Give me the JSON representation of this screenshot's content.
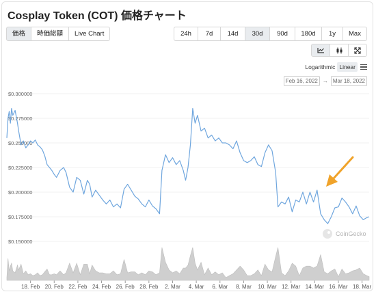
{
  "title": "Cosplay Token (COT) 価格チャート",
  "tabs": [
    {
      "label": "価格",
      "active": true
    },
    {
      "label": "時価総額",
      "active": false
    },
    {
      "label": "Live Chart",
      "active": false
    }
  ],
  "ranges": [
    {
      "label": "24h",
      "active": false
    },
    {
      "label": "7d",
      "active": false
    },
    {
      "label": "14d",
      "active": false
    },
    {
      "label": "30d",
      "active": true
    },
    {
      "label": "90d",
      "active": false
    },
    {
      "label": "180d",
      "active": false
    },
    {
      "label": "1y",
      "active": false
    },
    {
      "label": "Max",
      "active": false
    }
  ],
  "chart_types": [
    {
      "icon": "line-chart-icon",
      "active": true
    },
    {
      "icon": "candlestick-icon",
      "active": false
    },
    {
      "icon": "fullscreen-icon",
      "active": false
    }
  ],
  "scale": {
    "log_label": "Logarithmic",
    "linear_label": "Linear",
    "selected": "Linear"
  },
  "date_range": {
    "from": "Feb 16, 2022",
    "to": "Mar 18, 2022",
    "separator": "→"
  },
  "watermark": "CoinGecko",
  "colors": {
    "line": "#6fa6de",
    "volume": "#cfcfcf",
    "annotation": "#f0a32a",
    "grid": "#f0f0f0"
  },
  "chart_data": {
    "type": "line",
    "title": "",
    "xlabel": "",
    "ylabel": "",
    "ylim": [
      0.15,
      0.3
    ],
    "y_ticks": [
      0.15,
      0.175,
      0.2,
      0.225,
      0.25,
      0.275,
      0.3
    ],
    "y_tick_labels": [
      "$0.150000",
      "$0.175000",
      "$0.200000",
      "$0.225000",
      "$0.250000",
      "$0.275000",
      "$0.300000"
    ],
    "xlim_day": [
      16.0,
      46.6
    ],
    "x_ticks": [
      {
        "label": "18. Feb",
        "day": 18
      },
      {
        "label": "20. Feb",
        "day": 20
      },
      {
        "label": "22. Feb",
        "day": 22
      },
      {
        "label": "24. Feb",
        "day": 24
      },
      {
        "label": "26. Feb",
        "day": 26
      },
      {
        "label": "28. Feb",
        "day": 28
      },
      {
        "label": "2. Mar",
        "day": 30
      },
      {
        "label": "4. Mar",
        "day": 32
      },
      {
        "label": "6. Mar",
        "day": 34
      },
      {
        "label": "8. Mar",
        "day": 36
      },
      {
        "label": "10. Mar",
        "day": 38
      },
      {
        "label": "12. Mar",
        "day": 40
      },
      {
        "label": "14. Mar",
        "day": 42
      },
      {
        "label": "16. Mar",
        "day": 44
      },
      {
        "label": "18. Mar",
        "day": 46
      }
    ],
    "series": [
      {
        "name": "",
        "points": [
          [
            16.0,
            0.255
          ],
          [
            16.1,
            0.275
          ],
          [
            16.2,
            0.282
          ],
          [
            16.3,
            0.27
          ],
          [
            16.4,
            0.285
          ],
          [
            16.5,
            0.278
          ],
          [
            16.7,
            0.283
          ],
          [
            16.9,
            0.27
          ],
          [
            17.0,
            0.262
          ],
          [
            17.2,
            0.248
          ],
          [
            17.4,
            0.252
          ],
          [
            17.6,
            0.245
          ],
          [
            17.8,
            0.248
          ],
          [
            18.0,
            0.252
          ],
          [
            18.2,
            0.25
          ],
          [
            18.4,
            0.253
          ],
          [
            18.6,
            0.248
          ],
          [
            18.8,
            0.246
          ],
          [
            19.0,
            0.243
          ],
          [
            19.2,
            0.237
          ],
          [
            19.4,
            0.228
          ],
          [
            19.6,
            0.225
          ],
          [
            19.8,
            0.222
          ],
          [
            20.0,
            0.218
          ],
          [
            20.2,
            0.215
          ],
          [
            20.5,
            0.222
          ],
          [
            20.8,
            0.225
          ],
          [
            21.0,
            0.22
          ],
          [
            21.3,
            0.205
          ],
          [
            21.6,
            0.2
          ],
          [
            21.9,
            0.215
          ],
          [
            22.2,
            0.212
          ],
          [
            22.5,
            0.198
          ],
          [
            22.8,
            0.212
          ],
          [
            23.0,
            0.208
          ],
          [
            23.2,
            0.195
          ],
          [
            23.5,
            0.202
          ],
          [
            23.8,
            0.197
          ],
          [
            24.1,
            0.192
          ],
          [
            24.4,
            0.188
          ],
          [
            24.7,
            0.192
          ],
          [
            25.0,
            0.185
          ],
          [
            25.3,
            0.188
          ],
          [
            25.6,
            0.184
          ],
          [
            25.9,
            0.203
          ],
          [
            26.2,
            0.208
          ],
          [
            26.5,
            0.202
          ],
          [
            26.8,
            0.196
          ],
          [
            27.1,
            0.193
          ],
          [
            27.4,
            0.188
          ],
          [
            27.7,
            0.185
          ],
          [
            28.0,
            0.192
          ],
          [
            28.3,
            0.186
          ],
          [
            28.6,
            0.183
          ],
          [
            28.9,
            0.178
          ],
          [
            29.1,
            0.222
          ],
          [
            29.4,
            0.238
          ],
          [
            29.7,
            0.23
          ],
          [
            30.0,
            0.235
          ],
          [
            30.3,
            0.228
          ],
          [
            30.6,
            0.232
          ],
          [
            30.9,
            0.222
          ],
          [
            31.1,
            0.212
          ],
          [
            31.3,
            0.225
          ],
          [
            31.5,
            0.248
          ],
          [
            31.7,
            0.285
          ],
          [
            31.9,
            0.27
          ],
          [
            32.1,
            0.278
          ],
          [
            32.4,
            0.262
          ],
          [
            32.7,
            0.265
          ],
          [
            33.0,
            0.255
          ],
          [
            33.3,
            0.258
          ],
          [
            33.6,
            0.252
          ],
          [
            33.9,
            0.255
          ],
          [
            34.2,
            0.25
          ],
          [
            34.5,
            0.25
          ],
          [
            34.8,
            0.248
          ],
          [
            35.1,
            0.244
          ],
          [
            35.4,
            0.252
          ],
          [
            35.7,
            0.24
          ],
          [
            36.0,
            0.232
          ],
          [
            36.3,
            0.23
          ],
          [
            36.6,
            0.232
          ],
          [
            36.9,
            0.236
          ],
          [
            37.2,
            0.228
          ],
          [
            37.5,
            0.226
          ],
          [
            37.8,
            0.24
          ],
          [
            38.1,
            0.248
          ],
          [
            38.4,
            0.242
          ],
          [
            38.7,
            0.22
          ],
          [
            38.9,
            0.185
          ],
          [
            39.2,
            0.19
          ],
          [
            39.5,
            0.188
          ],
          [
            39.8,
            0.195
          ],
          [
            40.1,
            0.18
          ],
          [
            40.4,
            0.192
          ],
          [
            40.7,
            0.19
          ],
          [
            41.0,
            0.2
          ],
          [
            41.3,
            0.188
          ],
          [
            41.6,
            0.2
          ],
          [
            41.9,
            0.19
          ],
          [
            42.2,
            0.202
          ],
          [
            42.5,
            0.178
          ],
          [
            42.8,
            0.172
          ],
          [
            43.1,
            0.168
          ],
          [
            43.4,
            0.175
          ],
          [
            43.7,
            0.184
          ],
          [
            44.0,
            0.185
          ],
          [
            44.3,
            0.194
          ],
          [
            44.6,
            0.19
          ],
          [
            44.9,
            0.185
          ],
          [
            45.2,
            0.178
          ],
          [
            45.5,
            0.186
          ],
          [
            45.8,
            0.176
          ],
          [
            46.1,
            0.172
          ],
          [
            46.4,
            0.174
          ],
          [
            46.6,
            0.175
          ]
        ]
      }
    ]
  }
}
